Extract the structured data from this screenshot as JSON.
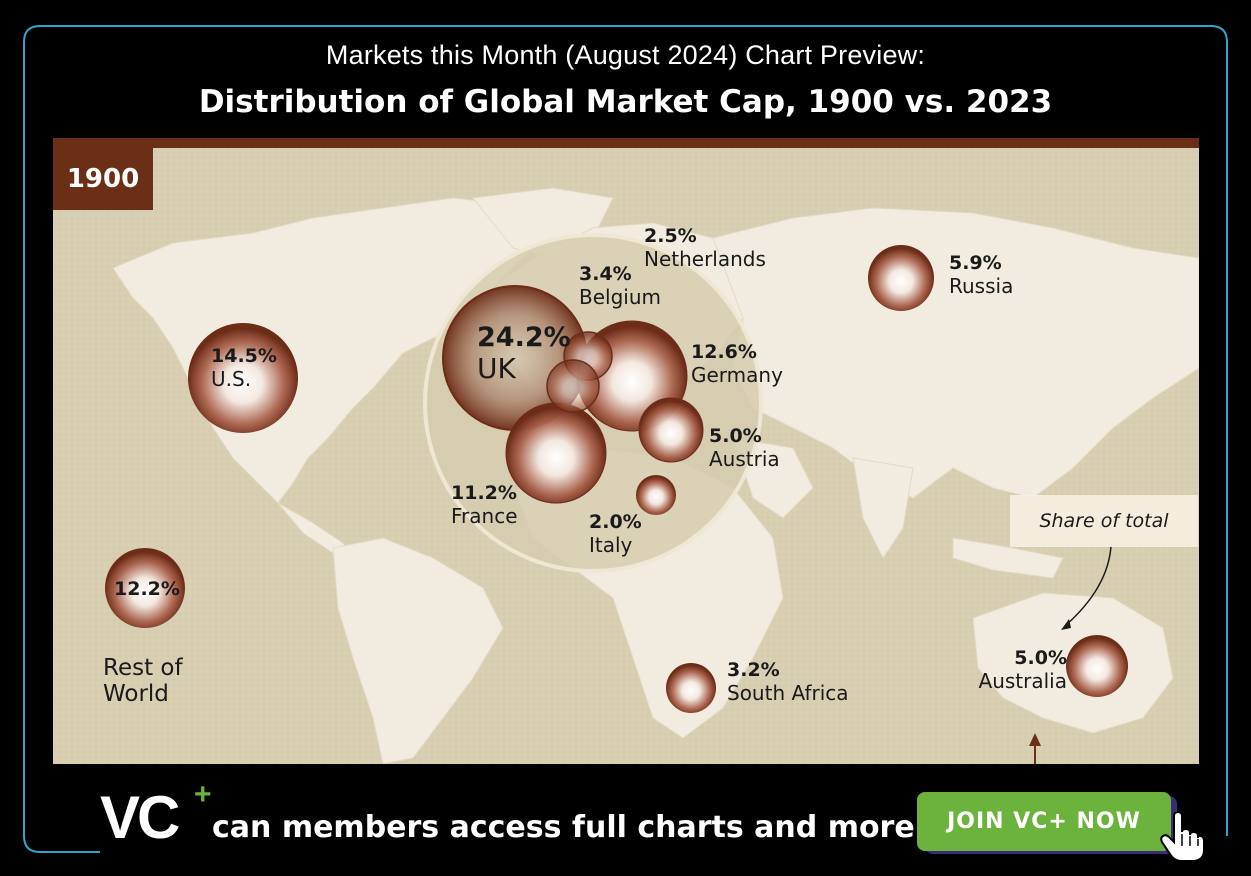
{
  "header": {
    "pretitle": "Markets this Month (August 2024) Chart Preview:",
    "title": "Distribution of Global Market Cap, 1900 vs. 2023"
  },
  "map": {
    "year_label": "1900",
    "legend_note": "Share of total",
    "bubble_color": "#7a3a22",
    "land_color": "#f1ecdf",
    "ocean_color": "#d9cfb4",
    "markets": [
      {
        "id": "uk",
        "pct": "24.2%",
        "name": "UK",
        "share": 24.2
      },
      {
        "id": "us",
        "pct": "14.5%",
        "name": "U.S.",
        "share": 14.5
      },
      {
        "id": "germany",
        "pct": "12.6%",
        "name": "Germany",
        "share": 12.6
      },
      {
        "id": "rest-of-world",
        "pct": "12.2%",
        "name": "Rest of World",
        "name_line1": "Rest of",
        "name_line2": "World",
        "share": 12.2
      },
      {
        "id": "france",
        "pct": "11.2%",
        "name": "France",
        "share": 11.2
      },
      {
        "id": "russia",
        "pct": "5.9%",
        "name": "Russia",
        "share": 5.9
      },
      {
        "id": "austria",
        "pct": "5.0%",
        "name": "Austria",
        "share": 5.0
      },
      {
        "id": "australia",
        "pct": "5.0%",
        "name": "Australia",
        "share": 5.0
      },
      {
        "id": "belgium",
        "pct": "3.4%",
        "name": "Belgium",
        "share": 3.4
      },
      {
        "id": "south-africa",
        "pct": "3.2%",
        "name": "South Africa",
        "share": 3.2
      },
      {
        "id": "netherlands",
        "pct": "2.5%",
        "name": "Netherlands",
        "share": 2.5
      },
      {
        "id": "italy",
        "pct": "2.0%",
        "name": "Italy",
        "share": 2.0
      }
    ]
  },
  "footer": {
    "logo_text": "VC",
    "logo_plus": "+",
    "tagline": "can members access full charts and more",
    "cta_label": "JOIN VC+ NOW",
    "accent_color": "#2fa6c9",
    "cta_color": "#6bb33c"
  }
}
